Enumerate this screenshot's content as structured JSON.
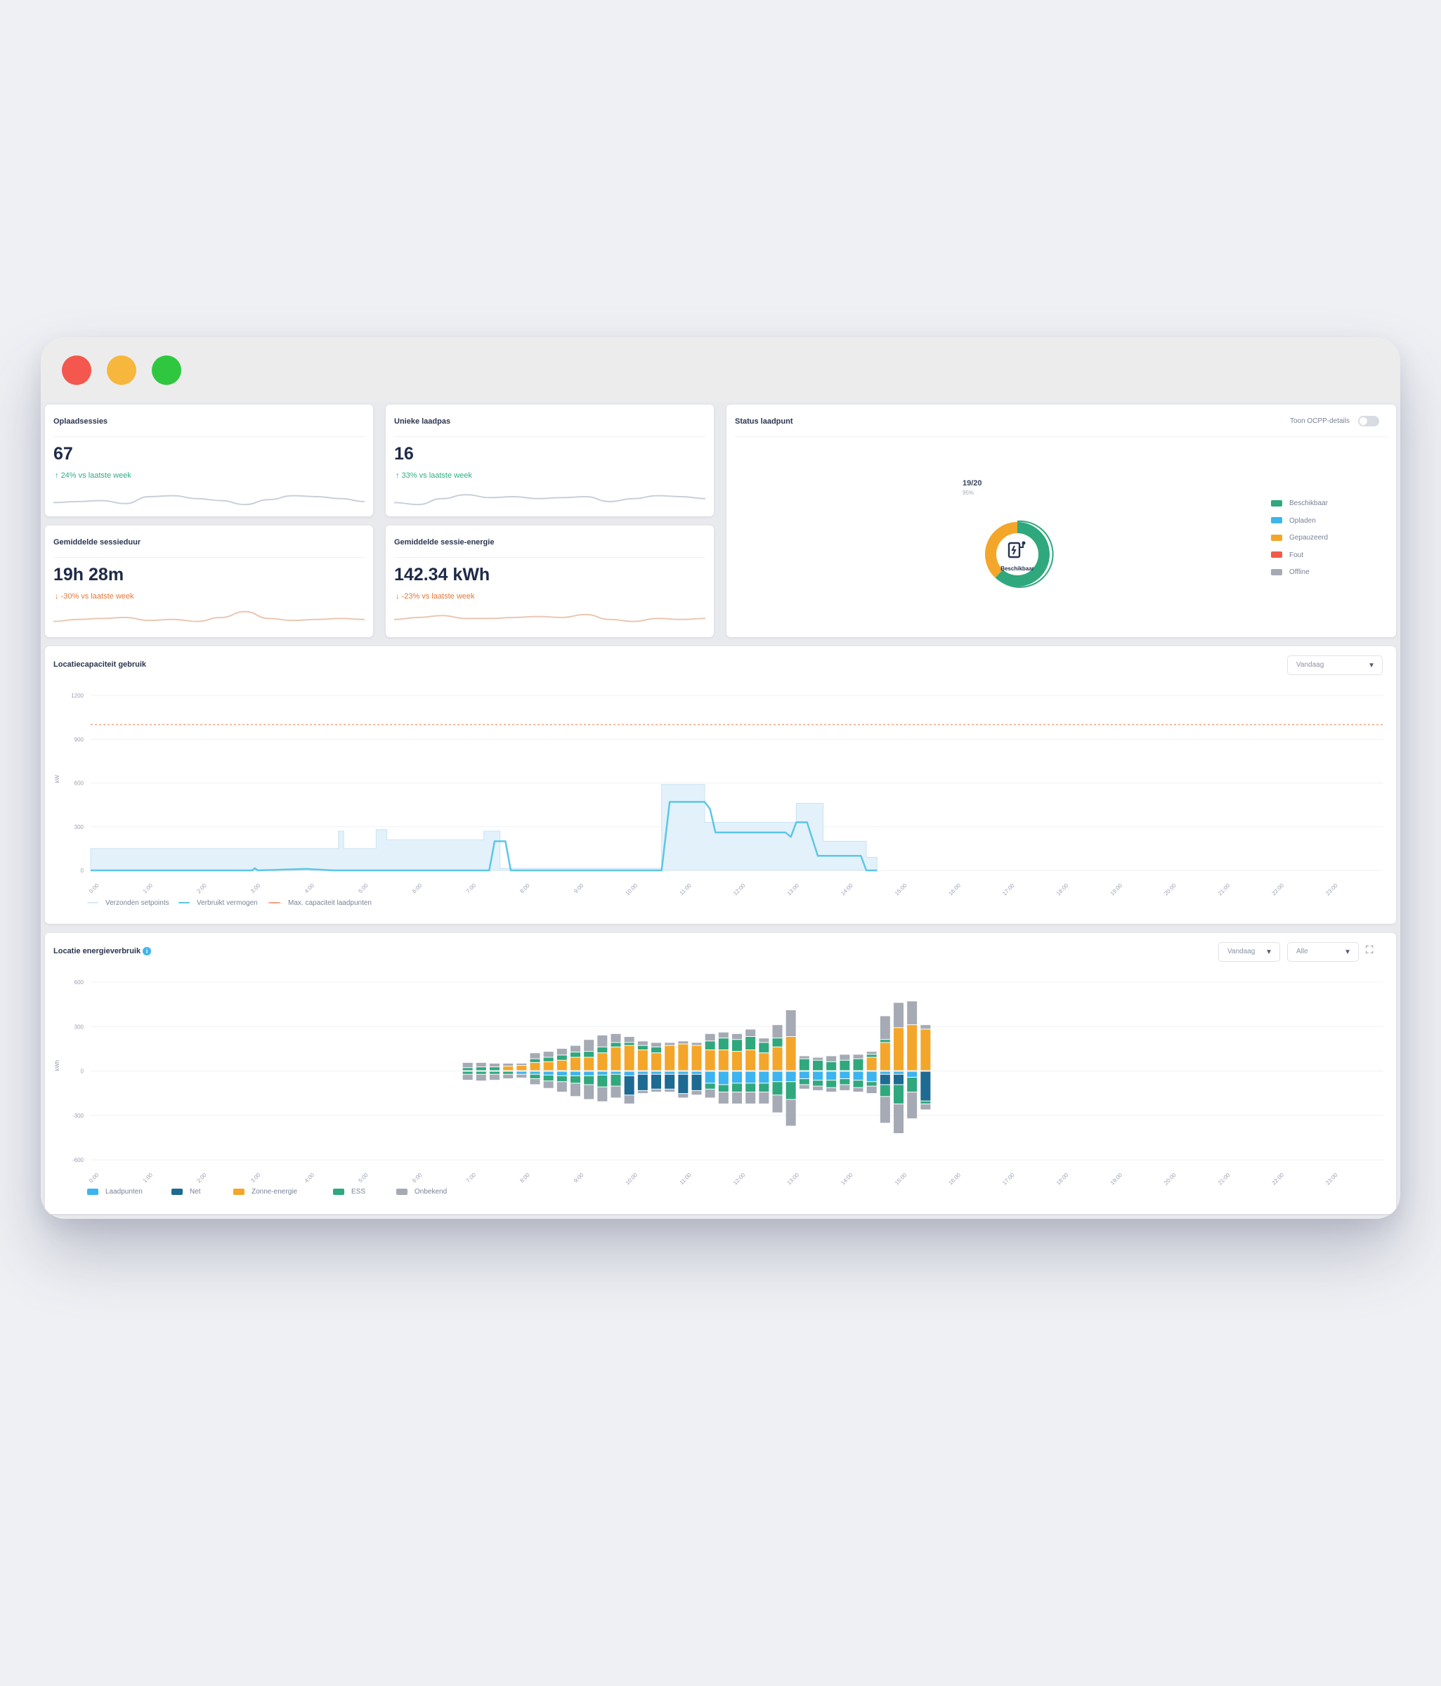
{
  "kpis": [
    {
      "title": "Oplaadsessies",
      "value": "67",
      "delta": "24% vs laatste week",
      "trend": "up",
      "spark": [
        0.8,
        0.75,
        0.7,
        0.85,
        0.5,
        0.45,
        0.6,
        0.7,
        0.9,
        0.65,
        0.45,
        0.5,
        0.6,
        0.75
      ]
    },
    {
      "title": "Unieke laadpas",
      "value": "16",
      "delta": "33% vs laatste week",
      "trend": "up",
      "spark": [
        0.8,
        0.9,
        0.6,
        0.4,
        0.55,
        0.5,
        0.6,
        0.55,
        0.5,
        0.75,
        0.6,
        0.45,
        0.5,
        0.6
      ]
    },
    {
      "title": "Gemiddelde sessieduur",
      "value": "19h 28m",
      "delta": "-30% vs laatste week",
      "trend": "down",
      "spark": [
        0.7,
        0.6,
        0.55,
        0.5,
        0.65,
        0.6,
        0.7,
        0.5,
        0.2,
        0.55,
        0.65,
        0.6,
        0.55,
        0.6
      ]
    },
    {
      "title": "Gemiddelde sessie-energie",
      "value": "142.34 kWh",
      "delta": "-23% vs laatste week",
      "trend": "down",
      "spark": [
        0.6,
        0.5,
        0.4,
        0.55,
        0.55,
        0.5,
        0.45,
        0.5,
        0.35,
        0.6,
        0.7,
        0.55,
        0.6,
        0.55
      ]
    }
  ],
  "status": {
    "title": "Status laadpunt",
    "toggle_label": "Toon OCPP-details",
    "center_label": "Beschikbaar",
    "count": "19/20",
    "count_sub": "95%",
    "legend": [
      {
        "label": "Beschikbaar",
        "color": "#2fa87e"
      },
      {
        "label": "Opladen",
        "color": "#3cb4ef"
      },
      {
        "label": "Gepauzeerd",
        "color": "#f4a62a"
      },
      {
        "label": "Fout",
        "color": "#ef5a4a"
      },
      {
        "label": "Offline",
        "color": "#a5aab5"
      }
    ],
    "segments": [
      {
        "name": "Beschikbaar",
        "color": "#2fa87e",
        "value": 0.62
      },
      {
        "name": "Gepauzeerd",
        "color": "#f4a62a",
        "value": 0.38
      }
    ]
  },
  "capacity": {
    "title": "Locatiecapaciteit gebruik",
    "range_select": "Vandaag",
    "chart_data": {
      "type": "line",
      "ylim": [
        0,
        1200
      ],
      "yticks": [
        "1200",
        "900",
        "600",
        "300",
        "0"
      ],
      "ylabel": "kW",
      "xticks": [
        "0:00",
        "1:00",
        "2:00",
        "3:00",
        "4:00",
        "5:00",
        "6:00",
        "7:00",
        "8:00",
        "9:00",
        "10:00",
        "11:00",
        "12:00",
        "13:00",
        "14:00",
        "15:00",
        "16:00",
        "17:00",
        "18:00",
        "19:00",
        "20:00",
        "21:00",
        "22:00",
        "23:00"
      ],
      "max_capacity": 1000,
      "series": [
        {
          "name": "Verzonden setpoints",
          "color": "#d6eaf8",
          "points": [
            [
              0,
              150
            ],
            [
              4.6,
              150
            ],
            [
              4.6,
              270
            ],
            [
              4.7,
              270
            ],
            [
              4.7,
              150
            ],
            [
              5.3,
              150
            ],
            [
              5.3,
              280
            ],
            [
              5.5,
              280
            ],
            [
              5.5,
              210
            ],
            [
              7.3,
              210
            ],
            [
              7.3,
              270
            ],
            [
              7.6,
              270
            ],
            [
              7.6,
              15
            ],
            [
              10.6,
              15
            ],
            [
              10.6,
              590
            ],
            [
              11.4,
              590
            ],
            [
              11.4,
              330
            ],
            [
              13.1,
              330
            ],
            [
              13.1,
              460
            ],
            [
              13.6,
              460
            ],
            [
              13.6,
              200
            ],
            [
              14.4,
              200
            ],
            [
              14.4,
              90
            ],
            [
              14.6,
              90
            ],
            [
              14.6,
              0
            ]
          ]
        },
        {
          "name": "Verbruikt vermogen",
          "color": "#5cc6e6",
          "points": [
            [
              0,
              0
            ],
            [
              3,
              0
            ],
            [
              3.05,
              15
            ],
            [
              3.1,
              0
            ],
            [
              4,
              10
            ],
            [
              4.5,
              0
            ],
            [
              7.4,
              0
            ],
            [
              7.5,
              200
            ],
            [
              7.7,
              200
            ],
            [
              7.8,
              0
            ],
            [
              10.6,
              0
            ],
            [
              10.75,
              470
            ],
            [
              11.4,
              470
            ],
            [
              11.5,
              420
            ],
            [
              11.6,
              260
            ],
            [
              12.9,
              260
            ],
            [
              13.0,
              230
            ],
            [
              13.1,
              330
            ],
            [
              13.3,
              330
            ],
            [
              13.5,
              100
            ],
            [
              14.3,
              100
            ],
            [
              14.4,
              0
            ],
            [
              14.6,
              0
            ]
          ]
        },
        {
          "name": "Max. capaciteit laadpunten",
          "color": "#f2a27e",
          "points": [
            [
              0,
              1000
            ],
            [
              24,
              1000
            ]
          ]
        }
      ]
    }
  },
  "energy": {
    "title": "Locatie energieverbruik",
    "range_select": "Vandaag",
    "filter_select": "Alle",
    "chart_data": {
      "type": "bar",
      "ylim": [
        -600,
        600
      ],
      "yticks": [
        "600",
        "300",
        "0",
        "-300",
        "-600"
      ],
      "ylabel": "kWh",
      "xticks": [
        "0:00",
        "1:00",
        "2:00",
        "3:00",
        "4:00",
        "5:00",
        "6:00",
        "7:00",
        "8:00",
        "9:00",
        "10:00",
        "11:00",
        "12:00",
        "13:00",
        "14:00",
        "15:00",
        "16:00",
        "17:00",
        "18:00",
        "19:00",
        "20:00",
        "21:00",
        "22:00",
        "23:00"
      ],
      "series_names": [
        "Laadpunten",
        "Net",
        "Zonne-energie",
        "ESS",
        "Onbekend"
      ],
      "series_colors": [
        "#3cb4ef",
        "#1d6a93",
        "#f4a62a",
        "#2fa87e",
        "#a5aab5"
      ],
      "bars": [
        {
          "x": 7.0,
          "pos": [
            0,
            0,
            0,
            20,
            35
          ],
          "neg": [
            0,
            0,
            0,
            20,
            40
          ]
        },
        {
          "x": 7.25,
          "pos": [
            0,
            0,
            0,
            25,
            30
          ],
          "neg": [
            0,
            0,
            0,
            20,
            45
          ]
        },
        {
          "x": 7.5,
          "pos": [
            0,
            0,
            0,
            25,
            25
          ],
          "neg": [
            0,
            0,
            0,
            20,
            40
          ]
        },
        {
          "x": 7.75,
          "pos": [
            0,
            0,
            30,
            0,
            20
          ],
          "neg": [
            0,
            0,
            0,
            20,
            30
          ]
        },
        {
          "x": 8.0,
          "pos": [
            0,
            0,
            35,
            0,
            15
          ],
          "neg": [
            20,
            0,
            0,
            0,
            25
          ]
        },
        {
          "x": 8.25,
          "pos": [
            0,
            0,
            55,
            25,
            40
          ],
          "neg": [
            20,
            0,
            0,
            30,
            40
          ]
        },
        {
          "x": 8.5,
          "pos": [
            0,
            0,
            60,
            30,
            40
          ],
          "neg": [
            25,
            0,
            0,
            40,
            50
          ]
        },
        {
          "x": 8.75,
          "pos": [
            0,
            0,
            70,
            35,
            45
          ],
          "neg": [
            30,
            0,
            0,
            40,
            70
          ]
        },
        {
          "x": 9.0,
          "pos": [
            0,
            0,
            90,
            35,
            45
          ],
          "neg": [
            30,
            0,
            0,
            50,
            90
          ]
        },
        {
          "x": 9.25,
          "pos": [
            0,
            0,
            90,
            40,
            80
          ],
          "neg": [
            30,
            0,
            0,
            60,
            100
          ]
        },
        {
          "x": 9.5,
          "pos": [
            0,
            0,
            120,
            40,
            80
          ],
          "neg": [
            25,
            0,
            0,
            80,
            100
          ]
        },
        {
          "x": 9.75,
          "pos": [
            0,
            0,
            160,
            30,
            60
          ],
          "neg": [
            20,
            0,
            0,
            80,
            80
          ]
        },
        {
          "x": 10.0,
          "pos": [
            0,
            0,
            170,
            20,
            40
          ],
          "neg": [
            30,
            130,
            0,
            0,
            60
          ]
        },
        {
          "x": 10.25,
          "pos": [
            0,
            0,
            140,
            30,
            30
          ],
          "neg": [
            20,
            110,
            0,
            0,
            20
          ]
        },
        {
          "x": 10.5,
          "pos": [
            0,
            0,
            120,
            40,
            30
          ],
          "neg": [
            20,
            100,
            0,
            0,
            20
          ]
        },
        {
          "x": 10.75,
          "pos": [
            0,
            0,
            170,
            0,
            20
          ],
          "neg": [
            20,
            100,
            0,
            0,
            20
          ]
        },
        {
          "x": 11.0,
          "pos": [
            0,
            0,
            180,
            0,
            20
          ],
          "neg": [
            20,
            130,
            0,
            0,
            30
          ]
        },
        {
          "x": 11.25,
          "pos": [
            0,
            0,
            170,
            0,
            20
          ],
          "neg": [
            20,
            110,
            0,
            0,
            30
          ]
        },
        {
          "x": 11.5,
          "pos": [
            0,
            0,
            140,
            60,
            50
          ],
          "neg": [
            80,
            0,
            0,
            40,
            60
          ]
        },
        {
          "x": 11.75,
          "pos": [
            0,
            0,
            140,
            80,
            40
          ],
          "neg": [
            90,
            0,
            0,
            50,
            80
          ]
        },
        {
          "x": 12.0,
          "pos": [
            0,
            0,
            130,
            80,
            40
          ],
          "neg": [
            80,
            0,
            0,
            60,
            80
          ]
        },
        {
          "x": 12.25,
          "pos": [
            0,
            0,
            140,
            90,
            50
          ],
          "neg": [
            80,
            0,
            0,
            60,
            80
          ]
        },
        {
          "x": 12.5,
          "pos": [
            0,
            0,
            120,
            70,
            30
          ],
          "neg": [
            80,
            0,
            0,
            60,
            80
          ]
        },
        {
          "x": 12.75,
          "pos": [
            0,
            0,
            160,
            60,
            90
          ],
          "neg": [
            70,
            0,
            0,
            90,
            120
          ]
        },
        {
          "x": 13.0,
          "pos": [
            0,
            0,
            230,
            0,
            180
          ],
          "neg": [
            70,
            0,
            0,
            120,
            180
          ]
        },
        {
          "x": 13.25,
          "pos": [
            0,
            0,
            0,
            80,
            20
          ],
          "neg": [
            50,
            0,
            0,
            40,
            30
          ]
        },
        {
          "x": 13.5,
          "pos": [
            0,
            0,
            0,
            70,
            20
          ],
          "neg": [
            60,
            0,
            0,
            40,
            30
          ]
        },
        {
          "x": 13.75,
          "pos": [
            0,
            0,
            0,
            60,
            40
          ],
          "neg": [
            60,
            0,
            0,
            50,
            30
          ]
        },
        {
          "x": 14.0,
          "pos": [
            0,
            0,
            0,
            70,
            40
          ],
          "neg": [
            50,
            0,
            0,
            40,
            40
          ]
        },
        {
          "x": 14.25,
          "pos": [
            0,
            0,
            0,
            80,
            30
          ],
          "neg": [
            60,
            0,
            0,
            50,
            30
          ]
        },
        {
          "x": 14.5,
          "pos": [
            0,
            0,
            90,
            20,
            20
          ],
          "neg": [
            70,
            0,
            0,
            30,
            50
          ]
        },
        {
          "x": 14.75,
          "pos": [
            0,
            0,
            190,
            20,
            160
          ],
          "neg": [
            20,
            70,
            0,
            80,
            180
          ]
        },
        {
          "x": 15.0,
          "pos": [
            0,
            0,
            290,
            0,
            170
          ],
          "neg": [
            20,
            70,
            0,
            130,
            200
          ]
        },
        {
          "x": 15.25,
          "pos": [
            0,
            0,
            310,
            0,
            160
          ],
          "neg": [
            40,
            0,
            0,
            100,
            180
          ]
        },
        {
          "x": 15.5,
          "pos": [
            0,
            0,
            280,
            0,
            30
          ],
          "neg": [
            0,
            200,
            0,
            20,
            40
          ]
        }
      ]
    }
  }
}
